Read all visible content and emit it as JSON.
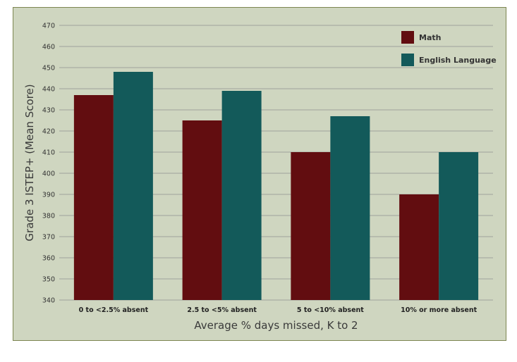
{
  "chart_data": {
    "type": "bar",
    "categories": [
      "0 to <2.5% absent",
      "2.5 to <5% absent",
      "5 to <10% absent",
      "10% or more absent"
    ],
    "series": [
      {
        "name": "Math",
        "values": [
          437,
          425,
          410,
          390
        ],
        "color": "#620d10"
      },
      {
        "name": "English Language",
        "values": [
          448,
          439,
          427,
          410
        ],
        "color": "#135a5a"
      }
    ],
    "xlabel": "Average % days missed, K to 2",
    "ylabel": "Grade 3 ISTEP+ (Mean Score)",
    "ylim": [
      340,
      470
    ],
    "yticks": [
      340,
      350,
      360,
      370,
      380,
      390,
      400,
      410,
      420,
      430,
      440,
      450,
      460,
      470
    ],
    "grid": true,
    "legend": "top-right",
    "colors": {
      "background": "#cfd6c0",
      "border": "#7d8651",
      "grid": "#8f8f8f"
    }
  }
}
